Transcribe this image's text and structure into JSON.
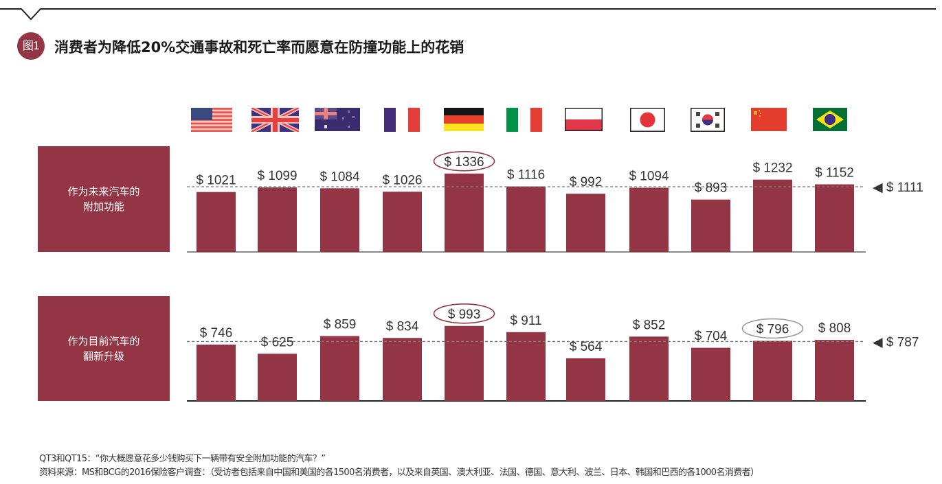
{
  "header": {
    "badge": "图1",
    "title": "消费者为降低20%交通事故和死亡率而愿意在防撞功能上的花销"
  },
  "flags": [
    {
      "country": "美国",
      "icon": "us-flag-icon"
    },
    {
      "country": "英国",
      "icon": "uk-flag-icon"
    },
    {
      "country": "澳大利亚",
      "icon": "australia-flag-icon"
    },
    {
      "country": "法国",
      "icon": "france-flag-icon"
    },
    {
      "country": "德国",
      "icon": "germany-flag-icon"
    },
    {
      "country": "意大利",
      "icon": "italy-flag-icon"
    },
    {
      "country": "波兰",
      "icon": "poland-flag-icon"
    },
    {
      "country": "日本",
      "icon": "japan-flag-icon"
    },
    {
      "country": "韩国",
      "icon": "korea-flag-icon"
    },
    {
      "country": "中国",
      "icon": "china-flag-icon"
    },
    {
      "country": "巴西",
      "icon": "brazil-flag-icon"
    }
  ],
  "colors": {
    "bar": "#933545",
    "highlight_red": "#933545",
    "highlight_gray": "#999999",
    "dashed": "#777777"
  },
  "chart_data": {
    "type": "bar",
    "title": "消费者为降低20%交通事故和死亡率而愿意在防撞功能上的花销",
    "categories": [
      "美国",
      "英国",
      "澳大利亚",
      "法国",
      "德国",
      "意大利",
      "波兰",
      "日本",
      "韩国",
      "中国",
      "巴西"
    ],
    "currency": "$",
    "series": [
      {
        "name": "作为未来汽车的附加功能",
        "label_lines": [
          "作为未来汽车的",
          "附加功能"
        ],
        "values": [
          1021,
          1099,
          1084,
          1026,
          1336,
          1116,
          992,
          1094,
          893,
          1232,
          1152
        ],
        "labels": [
          "$ 1021",
          "$ 1099",
          "$ 1084",
          "$ 1026",
          "$ 1336",
          "$ 1116",
          "$ 992",
          "$ 1094",
          "$ 893",
          "$ 1232",
          "$ 1152"
        ],
        "average": 1111,
        "average_label": "◀ $ 1111",
        "highlight": [
          {
            "index": 4,
            "style": "red"
          }
        ]
      },
      {
        "name": "作为目前汽车的翻新升级",
        "label_lines": [
          "作为目前汽车的",
          "翻新升级"
        ],
        "values": [
          746,
          625,
          859,
          834,
          993,
          911,
          564,
          852,
          704,
          796,
          808
        ],
        "labels": [
          "$ 746",
          "$ 625",
          "$ 859",
          "$ 834",
          "$ 993",
          "$ 911",
          "$ 564",
          "$ 852",
          "$ 704",
          "$ 796",
          "$ 808"
        ],
        "average": 787,
        "average_label": "◀ $ 787",
        "highlight": [
          {
            "index": 4,
            "style": "red"
          },
          {
            "index": 9,
            "style": "gray"
          }
        ]
      }
    ],
    "grid": false,
    "legend": "none"
  },
  "footer": {
    "question": "QT3和QT15：“你大概愿意花多少钱购买下一辆带有安全附加功能的汽车？”",
    "source": "资料来源：MS和BCG的2016保险客户调查：（受访者包括来自中国和美国的各1500名消费者，以及来自英国、澳大利亚、法国、德国、意大利、波兰、日本、韩国和巴西的各1000名消费者）"
  }
}
